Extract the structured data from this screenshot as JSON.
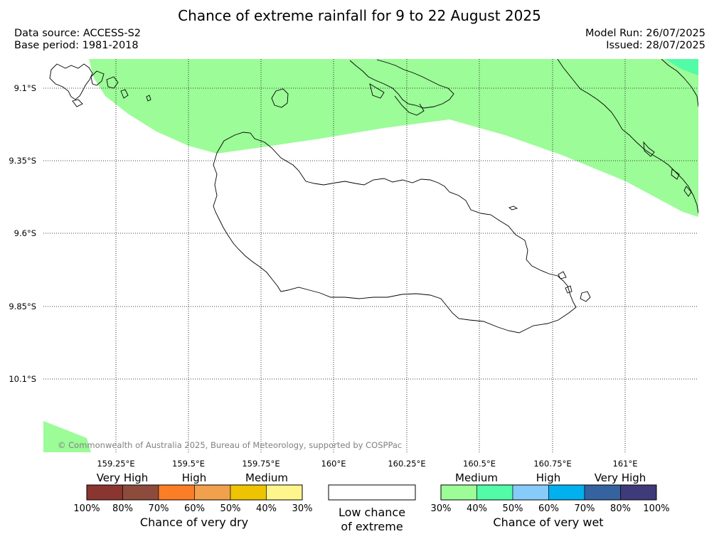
{
  "header": {
    "title": "Chance of extreme rainfall for 9 to 22 August 2025",
    "data_source": "Data source: ACCESS-S2",
    "base_period": "Base period: 1981-2018",
    "model_run": "Model Run: 26/07/2025",
    "issued": "Issued: 28/07/2025"
  },
  "map": {
    "lat_labels": [
      "9.1°S",
      "9.35°S",
      "9.6°S",
      "9.85°S",
      "10.1°S"
    ],
    "lon_labels": [
      "159.25°E",
      "159.5°E",
      "159.75°E",
      "160°E",
      "160.25°E",
      "160.5°E",
      "160.75°E",
      "161°E"
    ],
    "copyright": "© Commonwealth of Australia 2025, Bureau of Meteorology, supported by COSPPac",
    "colors": {
      "medium_wet": "#9cfc98",
      "high_wet": "#52fba6",
      "coast": "#000000"
    }
  },
  "legend": {
    "dry": {
      "category_labels": [
        "Very High",
        "High",
        "Medium"
      ],
      "tick_labels": [
        "100%",
        "80%",
        "70%",
        "60%",
        "50%",
        "40%",
        "30%"
      ],
      "colors": [
        "#8b3530",
        "#8d4b3b",
        "#fb7d26",
        "#f1a04b",
        "#eec402",
        "#fff58d"
      ],
      "title": "Chance of very dry"
    },
    "neutral": {
      "line1": "Low chance",
      "line2": "of extreme",
      "color": "#ffffff"
    },
    "wet": {
      "category_labels": [
        "Medium",
        "High",
        "Very High"
      ],
      "tick_labels": [
        "30%",
        "40%",
        "50%",
        "60%",
        "70%",
        "80%",
        "100%"
      ],
      "colors": [
        "#9cfc98",
        "#52fba6",
        "#86cbfa",
        "#01b0ef",
        "#3563a0",
        "#3f3a79"
      ],
      "title": "Chance of very wet"
    }
  }
}
